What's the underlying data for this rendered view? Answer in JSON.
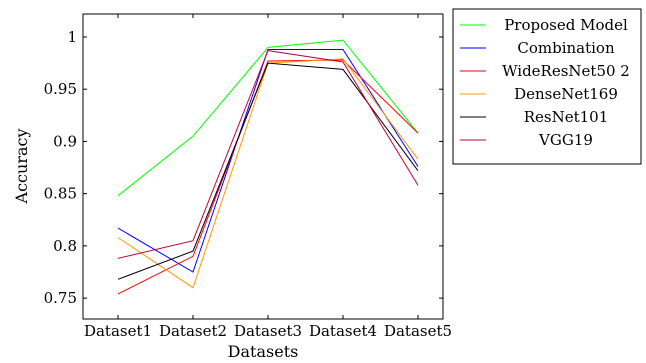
{
  "chart_data": {
    "type": "line",
    "title": "",
    "xlabel": "Datasets",
    "ylabel": "Accuracy",
    "categories": [
      "Dataset1",
      "Dataset2",
      "Dataset3",
      "Dataset4",
      "Dataset5"
    ],
    "ylim": [
      0.73,
      1.022
    ],
    "yticks": [
      0.75,
      0.8,
      0.85,
      0.9,
      0.95,
      1
    ],
    "ytick_labels": [
      "0.75",
      "0.8",
      "0.85",
      "0.9",
      "0.95",
      "1"
    ],
    "grid": false,
    "legend_position": "outside-right-top",
    "series": [
      {
        "name": "Proposed Model",
        "color": "#00ff00",
        "values": [
          0.848,
          0.905,
          0.99,
          0.997,
          0.908
        ]
      },
      {
        "name": "Combination",
        "color": "#0000ff",
        "values": [
          0.817,
          0.775,
          0.988,
          0.988,
          0.876
        ]
      },
      {
        "name": "WideResNet50 2",
        "color": "#ff0000",
        "values": [
          0.754,
          0.79,
          0.977,
          0.978,
          0.908
        ]
      },
      {
        "name": "DenseNet169",
        "color": "#ff9900",
        "values": [
          0.808,
          0.76,
          0.975,
          0.979,
          0.883
        ]
      },
      {
        "name": "ResNet101",
        "color": "#000000",
        "values": [
          0.768,
          0.795,
          0.975,
          0.969,
          0.872
        ]
      },
      {
        "name": "VGG19",
        "color": "#bf0040",
        "values": [
          0.788,
          0.805,
          0.987,
          0.976,
          0.858
        ]
      }
    ]
  }
}
